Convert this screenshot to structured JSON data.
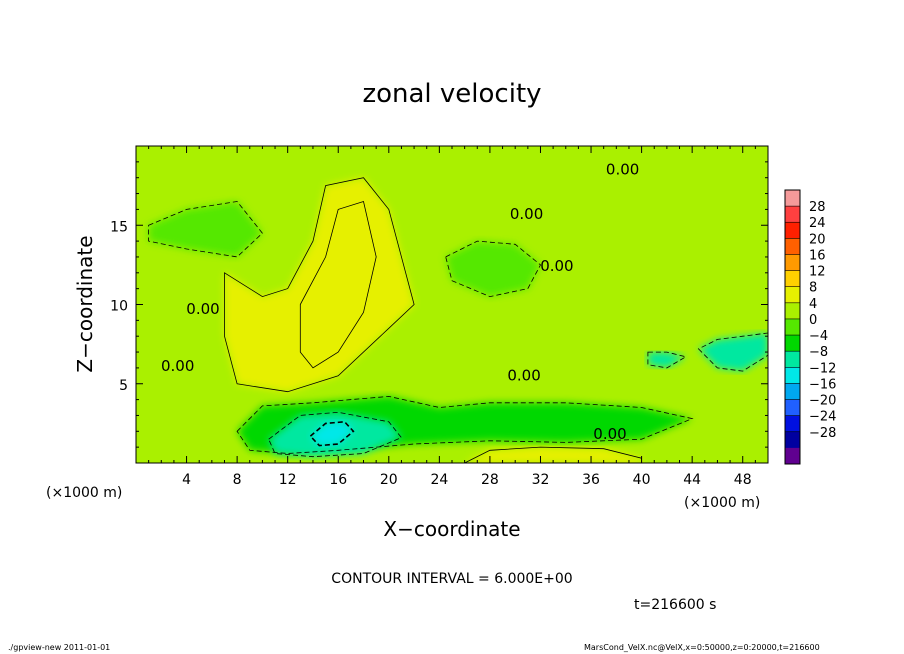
{
  "chart_data": {
    "type": "heatmap",
    "title": "zonal velocity",
    "xlabel": "X−coordinate",
    "ylabel": "Z−coordinate",
    "x_unit": "(×1000 m)",
    "y_unit": "(×1000 m)",
    "xlim": [
      0,
      50
    ],
    "ylim": [
      0,
      20
    ],
    "x_ticks": [
      4,
      8,
      12,
      16,
      20,
      24,
      28,
      32,
      36,
      40,
      44,
      48
    ],
    "y_ticks": [
      5,
      10,
      15
    ],
    "contour_interval_text": "CONTOUR INTERVAL = 6.000E+00",
    "time_text": "t=216600 s",
    "contour_labels": [
      {
        "text": "0.00",
        "x": 5.3,
        "y": 9.4
      },
      {
        "text": "0.00",
        "x": 3.3,
        "y": 5.8
      },
      {
        "text": "0.00",
        "x": 30.7,
        "y": 5.2
      },
      {
        "text": "0.00",
        "x": 37.5,
        "y": 1.5
      },
      {
        "text": "0.00",
        "x": 30.9,
        "y": 15.4
      },
      {
        "text": "0.00",
        "x": 33.3,
        "y": 12.1
      },
      {
        "text": "0.00",
        "x": 38.5,
        "y": 18.2
      }
    ],
    "colorbar": {
      "ticks": [
        28,
        24,
        20,
        16,
        12,
        8,
        4,
        0,
        -4,
        -8,
        -12,
        -16,
        -20,
        -24,
        -28
      ],
      "tick_labels": [
        "28",
        "24",
        "20",
        "16",
        "12",
        "8",
        "4",
        "0",
        "−4",
        "−8",
        "−12",
        "−16",
        "−20",
        "−24",
        "−28"
      ],
      "colors": [
        "#f59a9a",
        "#ff4040",
        "#ff2000",
        "#ff6000",
        "#ff9a00",
        "#ffd000",
        "#e6f000",
        "#aaf000",
        "#55e800",
        "#00d800",
        "#00e8a0",
        "#00e8e8",
        "#00a8f0",
        "#2060ff",
        "#0010e0",
        "#0000a0",
        "#600090"
      ]
    },
    "regions": [
      {
        "kind": "base",
        "value": 2,
        "points": []
      },
      {
        "kind": "weak-positive",
        "value": 5,
        "points": [
          [
            7,
            12
          ],
          [
            10,
            10.5
          ],
          [
            12,
            11
          ],
          [
            14,
            14
          ],
          [
            15,
            17.5
          ],
          [
            18,
            18
          ],
          [
            20,
            16
          ],
          [
            22,
            10
          ],
          [
            20,
            8.5
          ],
          [
            16,
            5.5
          ],
          [
            12,
            4.5
          ],
          [
            8,
            5
          ],
          [
            7,
            8
          ]
        ]
      },
      {
        "kind": "positive",
        "value": 7,
        "points": [
          [
            13,
            10
          ],
          [
            15,
            13
          ],
          [
            16,
            16
          ],
          [
            18,
            16.5
          ],
          [
            19,
            13
          ],
          [
            18,
            9.5
          ],
          [
            16,
            7
          ],
          [
            14,
            6
          ],
          [
            13,
            7
          ]
        ]
      },
      {
        "kind": "weak-negative",
        "value": -3,
        "points": [
          [
            1,
            15
          ],
          [
            4,
            16
          ],
          [
            8,
            16.5
          ],
          [
            10,
            14.5
          ],
          [
            8,
            13
          ],
          [
            4,
            13.5
          ],
          [
            1,
            14
          ]
        ]
      },
      {
        "kind": "weak-negative",
        "value": -3,
        "points": [
          [
            24.5,
            13
          ],
          [
            27,
            14
          ],
          [
            30,
            13.8
          ],
          [
            32,
            12.5
          ],
          [
            31,
            11
          ],
          [
            28,
            10.5
          ],
          [
            25,
            11.5
          ]
        ]
      },
      {
        "kind": "negative",
        "value": -7,
        "points": [
          [
            8,
            2
          ],
          [
            10,
            3.6
          ],
          [
            14,
            3.8
          ],
          [
            20,
            4.2
          ],
          [
            24,
            3.5
          ],
          [
            28,
            3.8
          ],
          [
            34,
            3.8
          ],
          [
            40,
            3.5
          ],
          [
            44,
            2.8
          ],
          [
            40,
            1.5
          ],
          [
            34,
            1.3
          ],
          [
            28,
            1.4
          ],
          [
            22,
            1.2
          ],
          [
            16,
            0.8
          ],
          [
            12,
            0.6
          ],
          [
            9,
            0.8
          ]
        ]
      },
      {
        "kind": "strong-negative",
        "value": -11,
        "points": [
          [
            10.5,
            1.5
          ],
          [
            13,
            3
          ],
          [
            16,
            3.2
          ],
          [
            20,
            2.6
          ],
          [
            21,
            1.6
          ],
          [
            18,
            0.6
          ],
          [
            14,
            0.4
          ],
          [
            11,
            0.6
          ]
        ]
      },
      {
        "kind": "strongest-negative",
        "value": -14,
        "points": [
          [
            13.8,
            1.7
          ],
          [
            15,
            2.5
          ],
          [
            16.5,
            2.6
          ],
          [
            17.2,
            2
          ],
          [
            16,
            1.2
          ],
          [
            14.5,
            1.1
          ]
        ]
      },
      {
        "kind": "negative",
        "value": -8,
        "points": [
          [
            40.5,
            7
          ],
          [
            42,
            7
          ],
          [
            43.5,
            6.7
          ],
          [
            42,
            6
          ],
          [
            40.5,
            6.2
          ]
        ]
      },
      {
        "kind": "negative",
        "value": -8,
        "points": [
          [
            44.5,
            7.2
          ],
          [
            46,
            6
          ],
          [
            48,
            5.8
          ],
          [
            50,
            6.8
          ],
          [
            50,
            8.2
          ],
          [
            48,
            8
          ],
          [
            46,
            7.8
          ]
        ]
      },
      {
        "kind": "weak-positive",
        "value": 5,
        "points": [
          [
            26,
            0
          ],
          [
            28,
            0.8
          ],
          [
            32,
            1
          ],
          [
            37,
            0.9
          ],
          [
            40,
            0.3
          ],
          [
            40,
            0
          ],
          [
            26,
            0
          ]
        ]
      }
    ]
  }
}
